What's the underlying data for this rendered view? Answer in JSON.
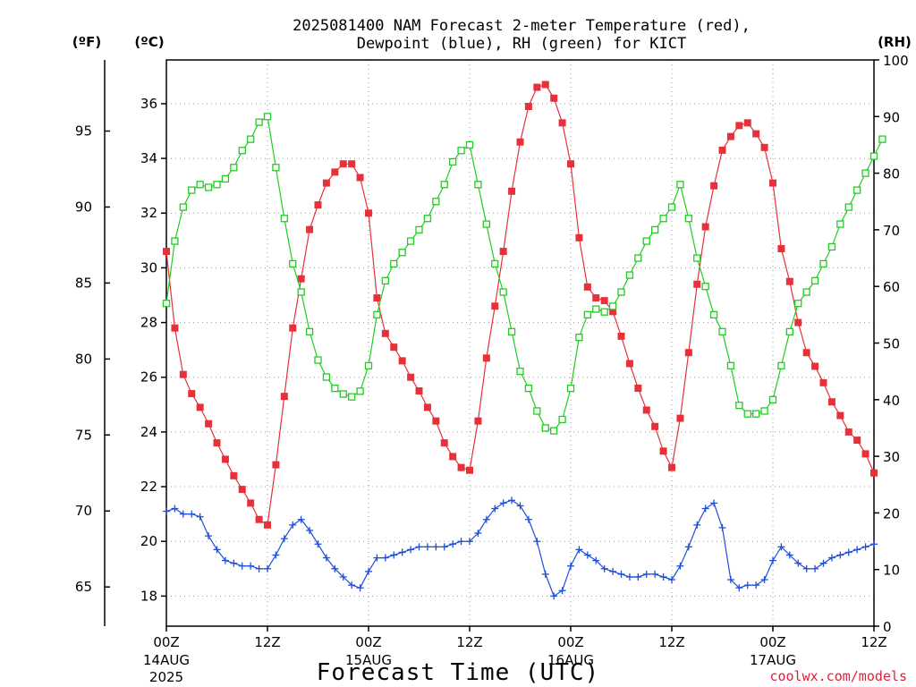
{
  "chart_data": {
    "type": "line",
    "title_line1": "2025081400 NAM Forecast 2-meter Temperature (red),",
    "title_line2": "Dewpoint (blue), RH (green) for KICT",
    "xlabel": "Forecast Time (UTC)",
    "credit": "coolwx.com/models",
    "unit_f": "(ºF)",
    "unit_c": "(ºC)",
    "unit_rh": "(RH)",
    "x_step_hours": 1,
    "x_range_hours": [
      0,
      84
    ],
    "x_ticks": [
      {
        "hour": 0,
        "label": "00Z",
        "date": "14AUG",
        "year": "2025"
      },
      {
        "hour": 12,
        "label": "12Z",
        "date": "",
        "year": ""
      },
      {
        "hour": 24,
        "label": "00Z",
        "date": "15AUG",
        "year": ""
      },
      {
        "hour": 36,
        "label": "12Z",
        "date": "",
        "year": ""
      },
      {
        "hour": 48,
        "label": "00Z",
        "date": "16AUG",
        "year": ""
      },
      {
        "hour": 60,
        "label": "12Z",
        "date": "",
        "year": ""
      },
      {
        "hour": 72,
        "label": "00Z",
        "date": "17AUG",
        "year": ""
      },
      {
        "hour": 84,
        "label": "12Z",
        "date": "",
        "year": ""
      }
    ],
    "celsius_range": [
      16.9,
      37.6
    ],
    "celsius_ticks": [
      18,
      20,
      22,
      24,
      26,
      28,
      30,
      32,
      34,
      36
    ],
    "fahrenheit_ticks": [
      65,
      70,
      75,
      80,
      85,
      90,
      95
    ],
    "rh_range": [
      0,
      100
    ],
    "rh_ticks": [
      0,
      10,
      20,
      30,
      40,
      50,
      60,
      70,
      80,
      90,
      100
    ],
    "grid": true,
    "series": [
      {
        "name": "Temperature",
        "axis": "celsius",
        "color": "#e8303a",
        "marker": "filled-square",
        "values": [
          30.6,
          27.8,
          26.1,
          25.4,
          24.9,
          24.3,
          23.6,
          23.0,
          22.4,
          21.9,
          21.4,
          20.8,
          20.6,
          22.8,
          25.3,
          27.8,
          29.6,
          31.4,
          32.3,
          33.1,
          33.5,
          33.8,
          33.8,
          33.3,
          32.0,
          28.9,
          27.6,
          27.1,
          26.6,
          26.0,
          25.5,
          24.9,
          24.4,
          23.6,
          23.1,
          22.7,
          22.6,
          24.4,
          26.7,
          28.6,
          30.6,
          32.8,
          34.6,
          35.9,
          36.6,
          36.7,
          36.2,
          35.3,
          33.8,
          31.1,
          29.3,
          28.9,
          28.8,
          28.4,
          27.5,
          26.5,
          25.6,
          24.8,
          24.2,
          23.3,
          22.7,
          24.5,
          26.9,
          29.4,
          31.5,
          33.0,
          34.3,
          34.8,
          35.2,
          35.3,
          34.9,
          34.4,
          33.1,
          30.7,
          29.5,
          28.0,
          26.9,
          26.4,
          25.8,
          25.1,
          24.6,
          24.0,
          23.7,
          23.2,
          22.5
        ]
      },
      {
        "name": "Dewpoint",
        "axis": "celsius",
        "color": "#1f4fd8",
        "marker": "plus",
        "values": [
          21.1,
          21.2,
          21.0,
          21.0,
          20.9,
          20.2,
          19.7,
          19.3,
          19.2,
          19.1,
          19.1,
          19.0,
          19.0,
          19.5,
          20.1,
          20.6,
          20.8,
          20.4,
          19.9,
          19.4,
          19.0,
          18.7,
          18.4,
          18.3,
          18.9,
          19.4,
          19.4,
          19.5,
          19.6,
          19.7,
          19.8,
          19.8,
          19.8,
          19.8,
          19.9,
          20.0,
          20.0,
          20.3,
          20.8,
          21.2,
          21.4,
          21.5,
          21.3,
          20.8,
          20.0,
          18.8,
          18.0,
          18.2,
          19.1,
          19.7,
          19.5,
          19.3,
          19.0,
          18.9,
          18.8,
          18.7,
          18.7,
          18.8,
          18.8,
          18.7,
          18.6,
          19.1,
          19.8,
          20.6,
          21.2,
          21.4,
          20.5,
          18.6,
          18.3,
          18.4,
          18.4,
          18.6,
          19.3,
          19.8,
          19.5,
          19.2,
          19.0,
          19.0,
          19.2,
          19.4,
          19.5,
          19.6,
          19.7,
          19.8,
          19.9
        ]
      },
      {
        "name": "RH",
        "axis": "rh",
        "color": "#22cc22",
        "marker": "open-square",
        "values": [
          57,
          68,
          74,
          77,
          78,
          77.5,
          78,
          79,
          81,
          84,
          86,
          89,
          90,
          81,
          72,
          64,
          59,
          52,
          47,
          44,
          42,
          41,
          40.5,
          41.5,
          46,
          55,
          61,
          64,
          66,
          68,
          70,
          72,
          75,
          78,
          82,
          84,
          85,
          78,
          71,
          64,
          59,
          52,
          45,
          42,
          38,
          35,
          34.5,
          36.5,
          42,
          51,
          55,
          56,
          55.5,
          56.5,
          59,
          62,
          65,
          68,
          70,
          72,
          74,
          78,
          72,
          65,
          60,
          55,
          52,
          46,
          39,
          37.5,
          37.5,
          38,
          40,
          46,
          52,
          57,
          59,
          61,
          64,
          67,
          71,
          74,
          77,
          80,
          83,
          86
        ]
      }
    ]
  }
}
